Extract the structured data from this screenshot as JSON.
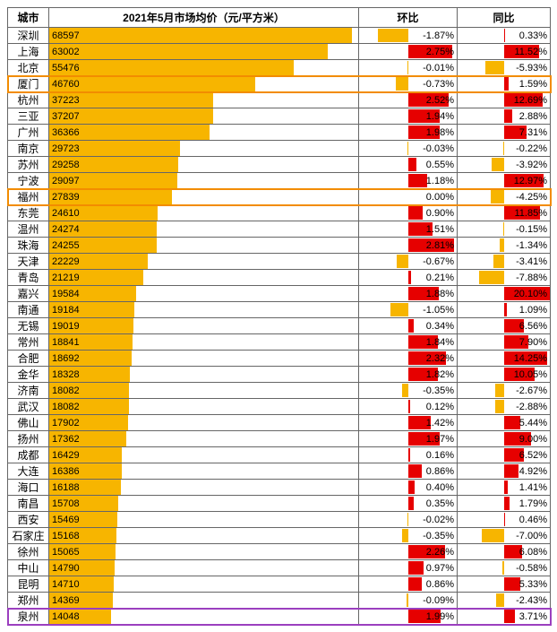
{
  "columns": {
    "city": "城市",
    "price": "2021年5月市场均价（元/平方米）",
    "mom": "环比",
    "yoy": "同比"
  },
  "style": {
    "bar_color": "#f7b500",
    "pos_color": "#e60000",
    "neg_color": "#f7b500",
    "price_max": 70000,
    "mom_scale": 3.0,
    "yoy_scale": 15.0,
    "font_size": 12,
    "border_color": "#666666",
    "background_color": "#ffffff",
    "highlight_colors": {
      "orange": "#f28c00",
      "purple": "#9b3fbf"
    }
  },
  "highlights": [
    {
      "city": "厦门",
      "color": "orange",
      "width": 2
    },
    {
      "city": "福州",
      "color": "orange",
      "width": 2
    },
    {
      "city": "泉州",
      "color": "purple",
      "width": 2
    }
  ],
  "rows": [
    {
      "city": "深圳",
      "price": 68597,
      "mom": -1.87,
      "yoy": 0.33
    },
    {
      "city": "上海",
      "price": 63002,
      "mom": 2.75,
      "yoy": 11.52
    },
    {
      "city": "北京",
      "price": 55476,
      "mom": -0.01,
      "yoy": -5.93
    },
    {
      "city": "厦门",
      "price": 46760,
      "mom": -0.73,
      "yoy": 1.59
    },
    {
      "city": "杭州",
      "price": 37223,
      "mom": 2.52,
      "yoy": 12.69
    },
    {
      "city": "三亚",
      "price": 37207,
      "mom": 1.94,
      "yoy": 2.88
    },
    {
      "city": "广州",
      "price": 36366,
      "mom": 1.98,
      "yoy": 7.31
    },
    {
      "city": "南京",
      "price": 29723,
      "mom": -0.03,
      "yoy": -0.22
    },
    {
      "city": "苏州",
      "price": 29258,
      "mom": 0.55,
      "yoy": -3.92
    },
    {
      "city": "宁波",
      "price": 29097,
      "mom": 1.18,
      "yoy": 12.97
    },
    {
      "city": "福州",
      "price": 27839,
      "mom": 0.0,
      "yoy": -4.25
    },
    {
      "city": "东莞",
      "price": 24610,
      "mom": 0.9,
      "yoy": 11.85
    },
    {
      "city": "温州",
      "price": 24274,
      "mom": 1.51,
      "yoy": -0.15
    },
    {
      "city": "珠海",
      "price": 24255,
      "mom": 2.81,
      "yoy": -1.34
    },
    {
      "city": "天津",
      "price": 22229,
      "mom": -0.67,
      "yoy": -3.41
    },
    {
      "city": "青岛",
      "price": 21219,
      "mom": 0.21,
      "yoy": -7.88
    },
    {
      "city": "嘉兴",
      "price": 19584,
      "mom": 1.88,
      "yoy": 20.1
    },
    {
      "city": "南通",
      "price": 19184,
      "mom": -1.05,
      "yoy": 1.09
    },
    {
      "city": "无锡",
      "price": 19019,
      "mom": 0.34,
      "yoy": 6.56
    },
    {
      "city": "常州",
      "price": 18841,
      "mom": 1.84,
      "yoy": 7.9
    },
    {
      "city": "合肥",
      "price": 18692,
      "mom": 2.32,
      "yoy": 14.25
    },
    {
      "city": "金华",
      "price": 18328,
      "mom": 1.82,
      "yoy": 10.05
    },
    {
      "city": "济南",
      "price": 18082,
      "mom": -0.35,
      "yoy": -2.67
    },
    {
      "city": "武汉",
      "price": 18082,
      "mom": 0.12,
      "yoy": -2.88
    },
    {
      "city": "佛山",
      "price": 17902,
      "mom": 1.42,
      "yoy": 5.44
    },
    {
      "city": "扬州",
      "price": 17362,
      "mom": 1.97,
      "yoy": 9.0
    },
    {
      "city": "成都",
      "price": 16429,
      "mom": 0.16,
      "yoy": 6.52
    },
    {
      "city": "大连",
      "price": 16386,
      "mom": 0.86,
      "yoy": 4.92
    },
    {
      "city": "海口",
      "price": 16188,
      "mom": 0.4,
      "yoy": 1.41
    },
    {
      "city": "南昌",
      "price": 15708,
      "mom": 0.35,
      "yoy": 1.79
    },
    {
      "city": "西安",
      "price": 15469,
      "mom": -0.02,
      "yoy": 0.46
    },
    {
      "city": "石家庄",
      "price": 15168,
      "mom": -0.35,
      "yoy": -7.0
    },
    {
      "city": "徐州",
      "price": 15065,
      "mom": 2.26,
      "yoy": 6.08
    },
    {
      "city": "中山",
      "price": 14790,
      "mom": 0.97,
      "yoy": -0.58
    },
    {
      "city": "昆明",
      "price": 14710,
      "mom": 0.86,
      "yoy": 5.33
    },
    {
      "city": "郑州",
      "price": 14369,
      "mom": -0.09,
      "yoy": -2.43
    },
    {
      "city": "泉州",
      "price": 14048,
      "mom": 1.99,
      "yoy": 3.71
    }
  ]
}
